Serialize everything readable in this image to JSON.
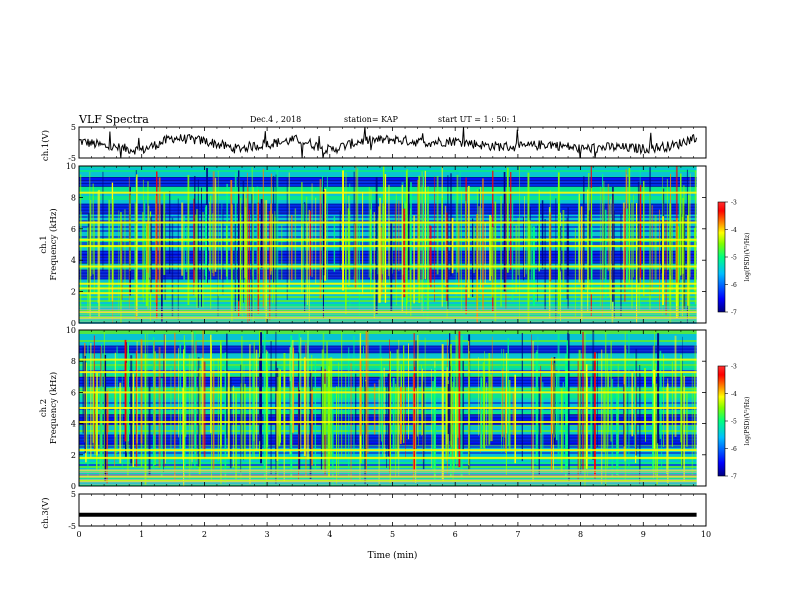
{
  "header": {
    "title": "VLF Spectra",
    "date": "Dec.4 , 2018",
    "station": "station= KAP",
    "start": "start UT = 1 : 50: 1"
  },
  "colors": {
    "waveform": "#000000",
    "colormap": [
      "#00007f",
      "#0000ff",
      "#00bfff",
      "#00ff7f",
      "#7fff00",
      "#ffff00",
      "#ff7f00",
      "#ff0000",
      "#7f0000"
    ]
  },
  "chart_data": [
    {
      "type": "line",
      "panel": "ch1-waveform",
      "ylabel": "ch.1(V)",
      "ylim": [
        -5,
        5
      ],
      "yticks": [
        "5",
        "-5"
      ],
      "xlim": [
        0,
        10
      ],
      "data_extent_min": [
        0,
        9.85
      ],
      "series": [
        {
          "x": [
            0,
            0.5,
            1.0,
            1.5,
            2.0,
            2.5,
            3.0,
            3.5,
            4.0,
            4.5,
            5.0,
            5.5,
            6.0,
            6.5,
            7.0,
            7.5,
            8.0,
            8.5,
            9.0,
            9.5,
            9.85
          ],
          "y": [
            0.5,
            -1.5,
            -2.5,
            1.5,
            0.5,
            -2.0,
            -0.5,
            1.0,
            -2.5,
            0.5,
            1.0,
            0.0,
            0.5,
            -1.0,
            -1.5,
            -0.5,
            -2.0,
            -1.5,
            -2.0,
            -1.0,
            2.0
          ]
        }
      ]
    },
    {
      "type": "heatmap",
      "panel": "ch1-spectrogram",
      "ylabel": "ch.1\nFrequency (kHz)",
      "ylabel_line1": "ch.1",
      "ylabel_line2": "Frequency (kHz)",
      "ylim": [
        0,
        10
      ],
      "yticks": [
        "0",
        "2",
        "4",
        "6",
        "8",
        "10"
      ],
      "xlim": [
        0,
        10
      ],
      "data_extent_min": [
        0,
        9.85
      ],
      "colorbar": {
        "label": "log(PSD)(V²/Hz)",
        "range": [
          -7,
          -3
        ],
        "ticks": [
          "-3",
          "-4",
          "-5",
          "-6",
          "-7"
        ]
      },
      "bright_bands_khz": [
        0.3,
        0.7,
        1.9,
        2.2,
        2.5,
        3.6,
        4.9,
        5.3,
        6.4,
        8.3
      ],
      "dark_bands_khz": [
        [
          2.8,
          3.4
        ],
        [
          3.8,
          4.6
        ],
        [
          6.9,
          7.6
        ],
        [
          8.7,
          9.3
        ]
      ]
    },
    {
      "type": "heatmap",
      "panel": "ch2-spectrogram",
      "ylabel": "ch.2\nFrequency (kHz)",
      "ylabel_line1": "ch.2",
      "ylabel_line2": "Frequency (kHz)",
      "ylim": [
        0,
        10
      ],
      "yticks": [
        "0",
        "2",
        "4",
        "6",
        "8",
        "10"
      ],
      "xlim": [
        0,
        10
      ],
      "data_extent_min": [
        0,
        9.85
      ],
      "colorbar": {
        "label": "log(PSD)(V²/Hz)",
        "range": [
          -7,
          -3
        ],
        "ticks": [
          "-3",
          "-4",
          "-5",
          "-6",
          "-7"
        ]
      },
      "bright_bands_khz": [
        0.3,
        0.6,
        1.0,
        1.8,
        2.3,
        4.1,
        5.0,
        6.0,
        7.3,
        8.1
      ],
      "dark_bands_khz": [
        [
          2.6,
          3.3
        ],
        [
          3.9,
          4.6
        ],
        [
          6.4,
          7.0
        ],
        [
          8.5,
          9.0
        ]
      ]
    },
    {
      "type": "line",
      "panel": "ch3-waveform",
      "ylabel": "ch.3(V)",
      "ylim": [
        -5,
        5
      ],
      "yticks": [
        "5",
        "-5"
      ],
      "xlim": [
        0,
        10
      ],
      "xlabel": "Time (min)",
      "xticks": [
        "0",
        "1",
        "2",
        "3",
        "4",
        "5",
        "6",
        "7",
        "8",
        "9",
        "10"
      ],
      "series": [
        {
          "x": [
            0,
            9.85
          ],
          "y": [
            -1.5,
            -1.5
          ]
        }
      ]
    }
  ]
}
